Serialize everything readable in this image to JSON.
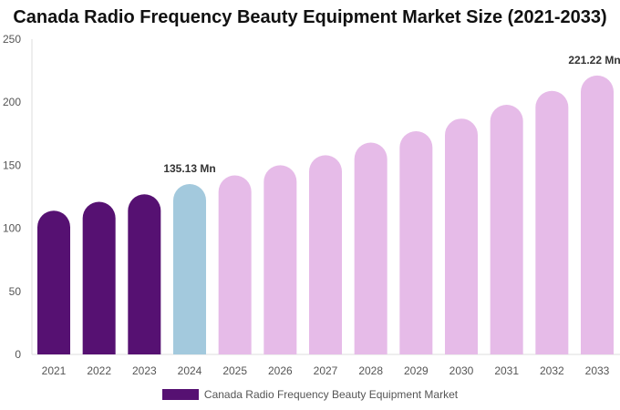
{
  "chart_data": {
    "type": "bar",
    "title": "Canada Radio Frequency Beauty Equipment Market Size (2021-2033)",
    "categories": [
      "2021",
      "2022",
      "2023",
      "2024",
      "2025",
      "2026",
      "2027",
      "2028",
      "2029",
      "2030",
      "2031",
      "2032",
      "2033"
    ],
    "series": [
      {
        "name": "Canada Radio Frequency Beauty Equipment Market",
        "values": [
          114,
          121,
          127,
          135.13,
          142,
          150,
          158,
          168,
          177,
          187,
          198,
          209,
          221.22
        ]
      }
    ],
    "data_labels": [
      {
        "index": 3,
        "text": "135.13 Mn"
      },
      {
        "index": 12,
        "text": "221.22 Mn"
      }
    ],
    "ylim": [
      0,
      250
    ],
    "yticks": [
      0,
      50,
      100,
      150,
      200,
      250
    ],
    "grid": false,
    "legend": "bottom",
    "colors": {
      "historical": "#561172",
      "current": "#a3c9dd",
      "forecast": "#e6bbe8"
    }
  }
}
